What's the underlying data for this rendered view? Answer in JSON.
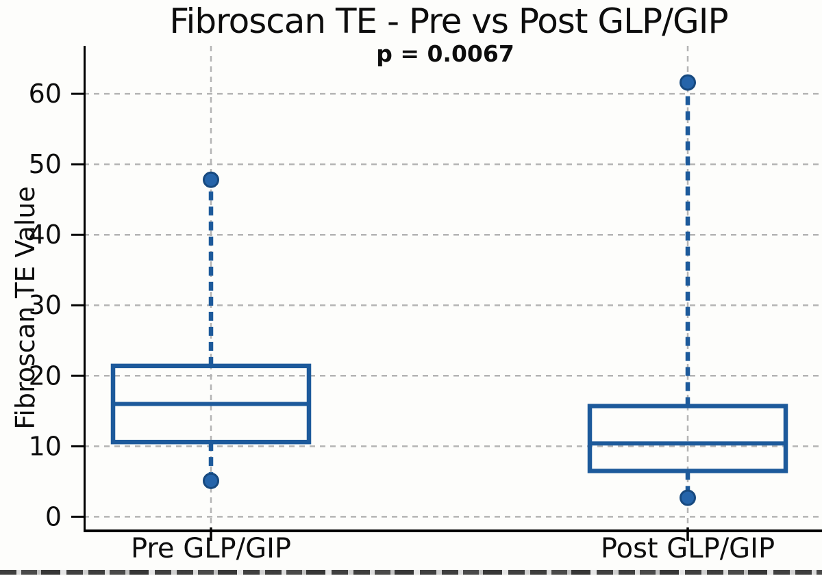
{
  "colors": {
    "box_stroke": "#1d5a9b",
    "dot_fill": "#2564aa",
    "dot_stroke": "#17497f",
    "grid": "#b4b4b4",
    "axis": "#000000",
    "text": "#0d0d0d",
    "background": "#fdfdfb"
  },
  "chart_data": {
    "type": "boxplot",
    "title": "Fibroscan TE - Pre vs Post GLP/GIP",
    "annotation": "p = 0.0067",
    "xlabel": "",
    "ylabel": "Fibroscan TE Value",
    "categories": [
      "Pre GLP/GIP",
      "Post GLP/GIP"
    ],
    "yticks": [
      0,
      10,
      20,
      30,
      40,
      50,
      60
    ],
    "ylim": [
      -1.9,
      66.8
    ],
    "grid": true,
    "grid_style": "dashed",
    "legend": "none",
    "series": [
      {
        "name": "Pre GLP/GIP",
        "whisker_low": 5.1,
        "q1": 10.6,
        "median": 16.0,
        "q3": 21.4,
        "whisker_high": 47.8
      },
      {
        "name": "Post GLP/GIP",
        "whisker_low": 2.7,
        "q1": 6.5,
        "median": 10.4,
        "q3": 15.7,
        "whisker_high": 61.6
      }
    ]
  }
}
